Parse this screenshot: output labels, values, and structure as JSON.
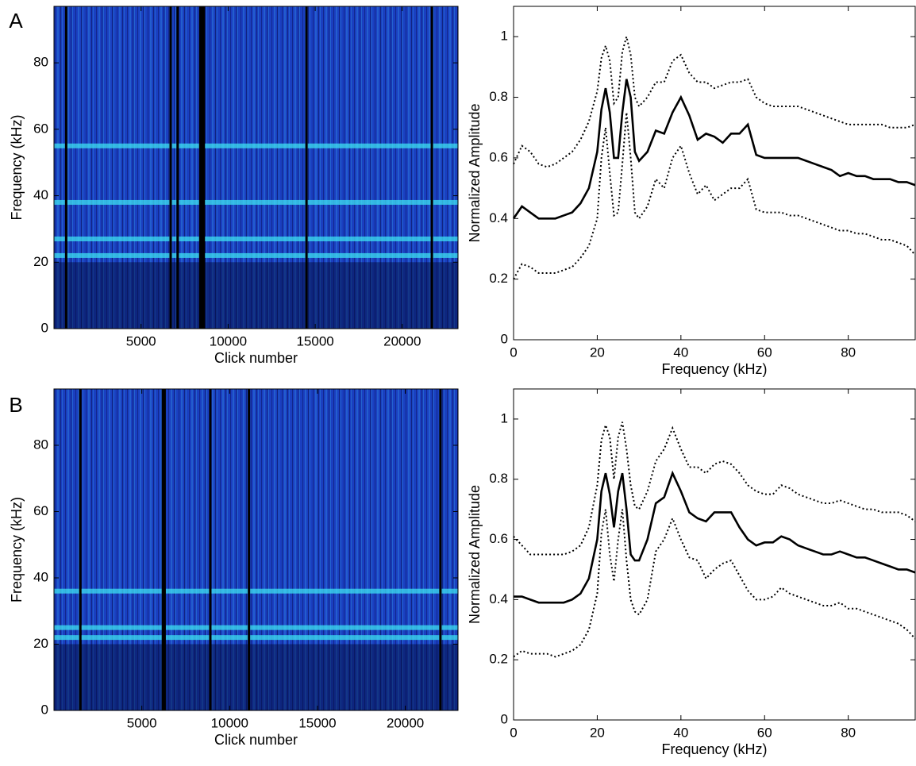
{
  "chart_data": [
    {
      "type": "spectrogram",
      "panel": "A",
      "xlabel": "Click number",
      "ylabel": "Frequency (kHz)",
      "xlim": [
        0,
        23200
      ],
      "xticks": [
        5000,
        10000,
        15000,
        20000
      ],
      "ylim": [
        0,
        97
      ],
      "yticks": [
        0,
        20,
        40,
        60,
        80
      ],
      "bands": [
        22,
        27,
        38,
        55
      ],
      "band_color": "#3ee0f0",
      "dark_columns": [
        700,
        6700,
        7100,
        8400,
        8500,
        8600,
        14500,
        21700
      ],
      "background": "#1a3fc0"
    },
    {
      "type": "line",
      "ylabel": "Normalized Amplitude",
      "xlabel": "Frequency (kHz)",
      "xlim": [
        0,
        96
      ],
      "xticks": [
        0,
        20,
        40,
        60,
        80
      ],
      "ylim": [
        0,
        1.1
      ],
      "yticks": [
        0,
        0.2,
        0.4,
        0.6,
        0.8,
        1
      ],
      "x": [
        0,
        2,
        4,
        6,
        8,
        10,
        12,
        14,
        16,
        18,
        20,
        21,
        22,
        23,
        24,
        25,
        26,
        27,
        28,
        29,
        30,
        32,
        34,
        36,
        38,
        40,
        42,
        44,
        46,
        48,
        50,
        52,
        54,
        56,
        58,
        60,
        62,
        64,
        66,
        68,
        70,
        72,
        74,
        76,
        78,
        80,
        82,
        84,
        86,
        88,
        90,
        92,
        94,
        96
      ],
      "series": [
        {
          "color": "#000000",
          "style": "solid",
          "values": [
            0.4,
            0.44,
            0.42,
            0.4,
            0.4,
            0.4,
            0.41,
            0.42,
            0.45,
            0.5,
            0.62,
            0.76,
            0.83,
            0.75,
            0.6,
            0.6,
            0.75,
            0.86,
            0.8,
            0.62,
            0.59,
            0.62,
            0.69,
            0.68,
            0.75,
            0.8,
            0.74,
            0.66,
            0.68,
            0.67,
            0.65,
            0.68,
            0.68,
            0.71,
            0.61,
            0.6,
            0.6,
            0.6,
            0.6,
            0.6,
            0.59,
            0.58,
            0.57,
            0.56,
            0.54,
            0.55,
            0.54,
            0.54,
            0.53,
            0.53,
            0.53,
            0.52,
            0.52,
            0.51
          ]
        },
        {
          "color": "#000000",
          "style": "dotted",
          "values": [
            0.58,
            0.64,
            0.62,
            0.58,
            0.57,
            0.58,
            0.6,
            0.62,
            0.66,
            0.72,
            0.82,
            0.93,
            0.97,
            0.92,
            0.78,
            0.8,
            0.95,
            1.0,
            0.94,
            0.8,
            0.77,
            0.8,
            0.85,
            0.85,
            0.92,
            0.94,
            0.88,
            0.85,
            0.85,
            0.83,
            0.84,
            0.85,
            0.85,
            0.86,
            0.8,
            0.78,
            0.77,
            0.77,
            0.77,
            0.77,
            0.76,
            0.75,
            0.74,
            0.73,
            0.72,
            0.71,
            0.71,
            0.71,
            0.71,
            0.71,
            0.7,
            0.7,
            0.7,
            0.71
          ]
        },
        {
          "color": "#000000",
          "style": "dotted",
          "values": [
            0.2,
            0.25,
            0.24,
            0.22,
            0.22,
            0.22,
            0.23,
            0.24,
            0.27,
            0.31,
            0.4,
            0.6,
            0.7,
            0.55,
            0.41,
            0.42,
            0.58,
            0.75,
            0.6,
            0.42,
            0.4,
            0.44,
            0.53,
            0.5,
            0.6,
            0.64,
            0.55,
            0.48,
            0.51,
            0.46,
            0.48,
            0.5,
            0.5,
            0.53,
            0.43,
            0.42,
            0.42,
            0.42,
            0.41,
            0.41,
            0.4,
            0.39,
            0.38,
            0.37,
            0.36,
            0.36,
            0.35,
            0.35,
            0.34,
            0.33,
            0.33,
            0.32,
            0.31,
            0.28
          ]
        }
      ]
    },
    {
      "type": "spectrogram",
      "panel": "B",
      "xlabel": "Click number",
      "ylabel": "Frequency (kHz)",
      "xlim": [
        0,
        23000
      ],
      "xticks": [
        5000,
        10000,
        15000,
        20000
      ],
      "ylim": [
        0,
        97
      ],
      "yticks": [
        0,
        20,
        40,
        60,
        80
      ],
      "bands": [
        22,
        25,
        36
      ],
      "band_color": "#3ee0f0",
      "dark_columns": [
        1500,
        6200,
        6300,
        8900,
        11100,
        22000
      ],
      "background": "#1a3fc0"
    },
    {
      "type": "line",
      "ylabel": "Normalized Amplitude",
      "xlabel": "Frequency (kHz)",
      "xlim": [
        0,
        96
      ],
      "xticks": [
        0,
        20,
        40,
        60,
        80
      ],
      "ylim": [
        0,
        1.1
      ],
      "yticks": [
        0,
        0.2,
        0.4,
        0.6,
        0.8,
        1
      ],
      "x": [
        0,
        2,
        4,
        6,
        8,
        10,
        12,
        14,
        16,
        18,
        20,
        21,
        22,
        23,
        24,
        25,
        26,
        27,
        28,
        29,
        30,
        32,
        34,
        36,
        38,
        40,
        42,
        44,
        46,
        48,
        50,
        52,
        54,
        56,
        58,
        60,
        62,
        64,
        66,
        68,
        70,
        72,
        74,
        76,
        78,
        80,
        82,
        84,
        86,
        88,
        90,
        92,
        94,
        96
      ],
      "series": [
        {
          "color": "#000000",
          "style": "solid",
          "values": [
            0.41,
            0.41,
            0.4,
            0.39,
            0.39,
            0.39,
            0.39,
            0.4,
            0.42,
            0.47,
            0.6,
            0.76,
            0.82,
            0.75,
            0.64,
            0.76,
            0.82,
            0.7,
            0.55,
            0.53,
            0.53,
            0.6,
            0.72,
            0.74,
            0.82,
            0.76,
            0.69,
            0.67,
            0.66,
            0.69,
            0.69,
            0.69,
            0.64,
            0.6,
            0.58,
            0.59,
            0.59,
            0.61,
            0.6,
            0.58,
            0.57,
            0.56,
            0.55,
            0.55,
            0.56,
            0.55,
            0.54,
            0.54,
            0.53,
            0.52,
            0.51,
            0.5,
            0.5,
            0.49
          ]
        },
        {
          "color": "#000000",
          "style": "dotted",
          "values": [
            0.61,
            0.58,
            0.55,
            0.55,
            0.55,
            0.55,
            0.55,
            0.56,
            0.58,
            0.64,
            0.78,
            0.93,
            0.98,
            0.94,
            0.8,
            0.94,
            0.99,
            0.9,
            0.78,
            0.71,
            0.7,
            0.76,
            0.86,
            0.9,
            0.97,
            0.9,
            0.84,
            0.84,
            0.82,
            0.85,
            0.86,
            0.85,
            0.82,
            0.78,
            0.76,
            0.75,
            0.75,
            0.78,
            0.77,
            0.75,
            0.74,
            0.73,
            0.72,
            0.72,
            0.73,
            0.72,
            0.71,
            0.7,
            0.7,
            0.69,
            0.69,
            0.69,
            0.68,
            0.66
          ]
        },
        {
          "color": "#000000",
          "style": "dotted",
          "values": [
            0.21,
            0.23,
            0.22,
            0.22,
            0.22,
            0.21,
            0.22,
            0.23,
            0.25,
            0.3,
            0.42,
            0.62,
            0.7,
            0.55,
            0.46,
            0.6,
            0.7,
            0.53,
            0.4,
            0.36,
            0.35,
            0.4,
            0.56,
            0.6,
            0.67,
            0.6,
            0.54,
            0.53,
            0.47,
            0.5,
            0.52,
            0.53,
            0.48,
            0.43,
            0.4,
            0.4,
            0.41,
            0.44,
            0.42,
            0.41,
            0.4,
            0.39,
            0.38,
            0.38,
            0.39,
            0.37,
            0.37,
            0.36,
            0.35,
            0.34,
            0.33,
            0.32,
            0.3,
            0.27
          ]
        }
      ]
    }
  ]
}
